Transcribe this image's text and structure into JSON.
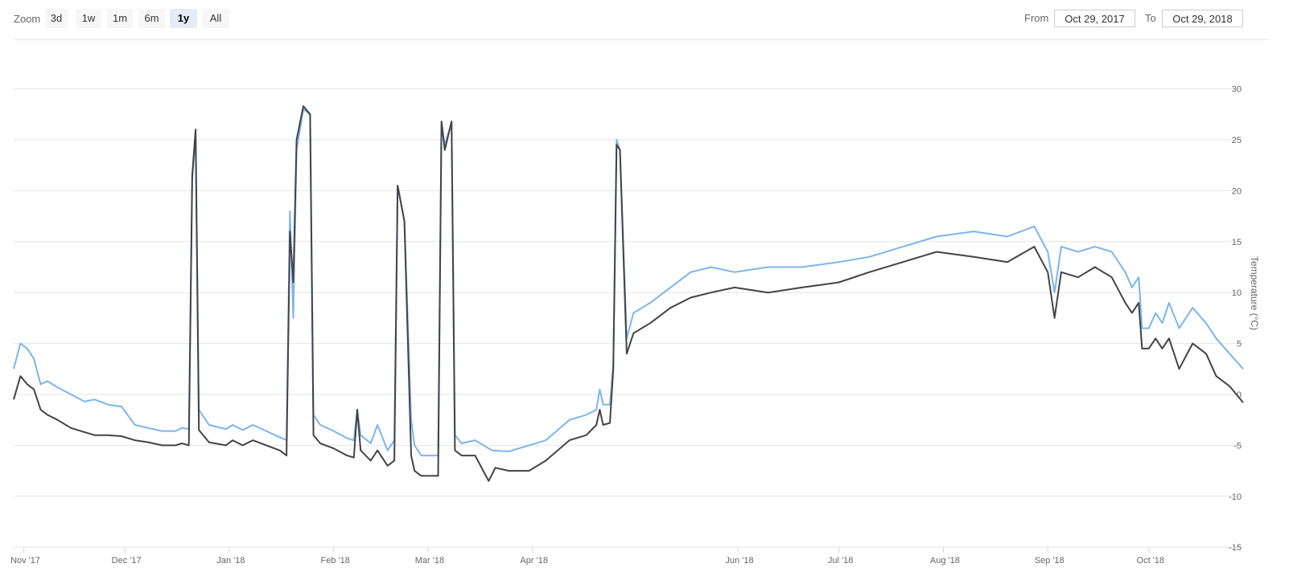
{
  "zoom": {
    "label": "Zoom",
    "buttons": [
      {
        "label": "3d",
        "active": false
      },
      {
        "label": "1w",
        "active": false
      },
      {
        "label": "1m",
        "active": false
      },
      {
        "label": "6m",
        "active": false
      },
      {
        "label": "1y",
        "active": true
      },
      {
        "label": "All",
        "active": false
      }
    ]
  },
  "range": {
    "from_label": "From",
    "from_value": "Oct 29, 2017",
    "to_label": "To",
    "to_value": "Oct 29, 2018"
  },
  "colors": {
    "series_light": "#7cb5ec",
    "series_dark": "#434348",
    "grid": "#e6e6e6",
    "active_button": "#e6ebf5"
  },
  "chart_data": {
    "type": "line",
    "title": "",
    "xlabel": "",
    "ylabel": "Temperature (°C)",
    "ylim": [
      -15,
      35
    ],
    "y_ticks": [
      30,
      25,
      20,
      15,
      10,
      5,
      0,
      -5,
      -10,
      -15
    ],
    "x_range": [
      "2017-10-29",
      "2018-10-29"
    ],
    "x_ticks": [
      {
        "label": "Nov '17",
        "date": "2017-11-01"
      },
      {
        "label": "Dec '17",
        "date": "2017-12-01"
      },
      {
        "label": "Jan '18",
        "date": "2018-01-01"
      },
      {
        "label": "Feb '18",
        "date": "2018-02-01"
      },
      {
        "label": "Mar '18",
        "date": "2018-03-01"
      },
      {
        "label": "Apr '18",
        "date": "2018-04-01"
      },
      {
        "label": "Jun '18",
        "date": "2018-06-01"
      },
      {
        "label": "Jul '18",
        "date": "2018-07-01"
      },
      {
        "label": "Aug '18",
        "date": "2018-08-01"
      },
      {
        "label": "Sep '18",
        "date": "2018-09-01"
      },
      {
        "label": "Oct '18",
        "date": "2018-10-01"
      }
    ],
    "grid": true,
    "series": [
      {
        "color": "#7cb5ec",
        "points": [
          [
            "2017-10-29",
            2.5
          ],
          [
            "2017-10-31",
            5.0
          ],
          [
            "2017-11-02",
            4.5
          ],
          [
            "2017-11-04",
            3.5
          ],
          [
            "2017-11-06",
            1.0
          ],
          [
            "2017-11-08",
            1.3
          ],
          [
            "2017-11-11",
            0.7
          ],
          [
            "2017-11-15",
            0.0
          ],
          [
            "2017-11-19",
            -0.7
          ],
          [
            "2017-11-22",
            -0.5
          ],
          [
            "2017-11-26",
            -1.0
          ],
          [
            "2017-11-30",
            -1.2
          ],
          [
            "2017-12-04",
            -3.0
          ],
          [
            "2017-12-08",
            -3.3
          ],
          [
            "2017-12-12",
            -3.6
          ],
          [
            "2017-12-16",
            -3.6
          ],
          [
            "2017-12-18",
            -3.3
          ],
          [
            "2017-12-20",
            -3.4
          ],
          [
            "2017-12-21",
            21.0
          ],
          [
            "2017-12-22",
            25.5
          ],
          [
            "2017-12-23",
            -1.5
          ],
          [
            "2017-12-26",
            -3.0
          ],
          [
            "2017-12-31",
            -3.4
          ],
          [
            "2018-01-02",
            -3.0
          ],
          [
            "2018-01-05",
            -3.5
          ],
          [
            "2018-01-08",
            -3.0
          ],
          [
            "2018-01-12",
            -3.6
          ],
          [
            "2018-01-16",
            -4.2
          ],
          [
            "2018-01-18",
            -4.5
          ],
          [
            "2018-01-19",
            18.0
          ],
          [
            "2018-01-20",
            7.5
          ],
          [
            "2018-01-21",
            24.0
          ],
          [
            "2018-01-23",
            28.0
          ],
          [
            "2018-01-25",
            27.5
          ],
          [
            "2018-01-26",
            -2.0
          ],
          [
            "2018-01-28",
            -3.0
          ],
          [
            "2018-02-01",
            -3.6
          ],
          [
            "2018-02-05",
            -4.3
          ],
          [
            "2018-02-07",
            -4.5
          ],
          [
            "2018-02-08",
            -1.5
          ],
          [
            "2018-02-09",
            -4.0
          ],
          [
            "2018-02-12",
            -4.8
          ],
          [
            "2018-02-14",
            -3.0
          ],
          [
            "2018-02-17",
            -5.5
          ],
          [
            "2018-02-19",
            -4.5
          ],
          [
            "2018-02-20",
            20.5
          ],
          [
            "2018-02-22",
            17.0
          ],
          [
            "2018-02-24",
            -2.5
          ],
          [
            "2018-02-25",
            -5.0
          ],
          [
            "2018-02-27",
            -6.0
          ],
          [
            "2018-03-04",
            -6.0
          ],
          [
            "2018-03-05",
            26.5
          ],
          [
            "2018-03-06",
            24.5
          ],
          [
            "2018-03-08",
            26.7
          ],
          [
            "2018-03-09",
            -4.0
          ],
          [
            "2018-03-11",
            -4.8
          ],
          [
            "2018-03-15",
            -4.5
          ],
          [
            "2018-03-20",
            -5.5
          ],
          [
            "2018-03-25",
            -5.6
          ],
          [
            "2018-03-31",
            -5.0
          ],
          [
            "2018-04-05",
            -4.5
          ],
          [
            "2018-04-12",
            -2.5
          ],
          [
            "2018-04-17",
            -2.0
          ],
          [
            "2018-04-20",
            -1.5
          ],
          [
            "2018-04-21",
            0.5
          ],
          [
            "2018-04-22",
            -1.0
          ],
          [
            "2018-04-24",
            -1.0
          ],
          [
            "2018-04-25",
            3.0
          ],
          [
            "2018-04-26",
            25.0
          ],
          [
            "2018-04-27",
            24.0
          ],
          [
            "2018-04-29",
            5.5
          ],
          [
            "2018-05-01",
            8.0
          ],
          [
            "2018-05-06",
            9.0
          ],
          [
            "2018-05-12",
            10.5
          ],
          [
            "2018-05-18",
            12.0
          ],
          [
            "2018-05-24",
            12.5
          ],
          [
            "2018-05-31",
            12.0
          ],
          [
            "2018-06-10",
            12.5
          ],
          [
            "2018-06-20",
            12.5
          ],
          [
            "2018-07-01",
            13.0
          ],
          [
            "2018-07-10",
            13.5
          ],
          [
            "2018-07-20",
            14.5
          ],
          [
            "2018-07-30",
            15.5
          ],
          [
            "2018-08-10",
            16.0
          ],
          [
            "2018-08-20",
            15.5
          ],
          [
            "2018-08-28",
            16.5
          ],
          [
            "2018-09-01",
            14.0
          ],
          [
            "2018-09-03",
            10.0
          ],
          [
            "2018-09-05",
            14.5
          ],
          [
            "2018-09-10",
            14.0
          ],
          [
            "2018-09-15",
            14.5
          ],
          [
            "2018-09-20",
            14.0
          ],
          [
            "2018-09-24",
            12.0
          ],
          [
            "2018-09-26",
            10.5
          ],
          [
            "2018-09-28",
            11.5
          ],
          [
            "2018-09-29",
            6.5
          ],
          [
            "2018-10-01",
            6.5
          ],
          [
            "2018-10-03",
            8.0
          ],
          [
            "2018-10-05",
            7.0
          ],
          [
            "2018-10-07",
            9.0
          ],
          [
            "2018-10-10",
            6.5
          ],
          [
            "2018-10-14",
            8.5
          ],
          [
            "2018-10-18",
            7.0
          ],
          [
            "2018-10-21",
            5.5
          ],
          [
            "2018-10-25",
            4.0
          ],
          [
            "2018-10-29",
            2.5
          ]
        ]
      },
      {
        "color": "#434348",
        "points": [
          [
            "2017-10-29",
            -0.5
          ],
          [
            "2017-10-31",
            1.8
          ],
          [
            "2017-11-02",
            1.0
          ],
          [
            "2017-11-04",
            0.5
          ],
          [
            "2017-11-06",
            -1.5
          ],
          [
            "2017-11-08",
            -2.0
          ],
          [
            "2017-11-11",
            -2.5
          ],
          [
            "2017-11-15",
            -3.3
          ],
          [
            "2017-11-19",
            -3.7
          ],
          [
            "2017-11-22",
            -4.0
          ],
          [
            "2017-11-26",
            -4.0
          ],
          [
            "2017-11-30",
            -4.1
          ],
          [
            "2017-12-04",
            -4.5
          ],
          [
            "2017-12-08",
            -4.7
          ],
          [
            "2017-12-12",
            -5.0
          ],
          [
            "2017-12-16",
            -5.0
          ],
          [
            "2017-12-18",
            -4.8
          ],
          [
            "2017-12-20",
            -5.0
          ],
          [
            "2017-12-21",
            21.5
          ],
          [
            "2017-12-22",
            26.0
          ],
          [
            "2017-12-23",
            -3.5
          ],
          [
            "2017-12-26",
            -4.7
          ],
          [
            "2017-12-31",
            -5.0
          ],
          [
            "2018-01-02",
            -4.5
          ],
          [
            "2018-01-05",
            -5.0
          ],
          [
            "2018-01-08",
            -4.5
          ],
          [
            "2018-01-12",
            -5.0
          ],
          [
            "2018-01-16",
            -5.5
          ],
          [
            "2018-01-18",
            -6.0
          ],
          [
            "2018-01-19",
            16.0
          ],
          [
            "2018-01-20",
            11.0
          ],
          [
            "2018-01-21",
            25.0
          ],
          [
            "2018-01-23",
            28.3
          ],
          [
            "2018-01-25",
            27.5
          ],
          [
            "2018-01-26",
            -4.0
          ],
          [
            "2018-01-28",
            -4.8
          ],
          [
            "2018-02-01",
            -5.3
          ],
          [
            "2018-02-05",
            -6.0
          ],
          [
            "2018-02-07",
            -6.2
          ],
          [
            "2018-02-08",
            -1.5
          ],
          [
            "2018-02-09",
            -5.5
          ],
          [
            "2018-02-12",
            -6.5
          ],
          [
            "2018-02-14",
            -5.5
          ],
          [
            "2018-02-17",
            -7.0
          ],
          [
            "2018-02-19",
            -6.5
          ],
          [
            "2018-02-20",
            20.5
          ],
          [
            "2018-02-22",
            17.0
          ],
          [
            "2018-02-24",
            -6.0
          ],
          [
            "2018-02-25",
            -7.5
          ],
          [
            "2018-02-27",
            -8.0
          ],
          [
            "2018-03-04",
            -8.0
          ],
          [
            "2018-03-05",
            26.8
          ],
          [
            "2018-03-06",
            24.0
          ],
          [
            "2018-03-08",
            26.8
          ],
          [
            "2018-03-09",
            -5.5
          ],
          [
            "2018-03-11",
            -6.0
          ],
          [
            "2018-03-15",
            -6.0
          ],
          [
            "2018-03-19",
            -8.5
          ],
          [
            "2018-03-21",
            -7.2
          ],
          [
            "2018-03-25",
            -7.5
          ],
          [
            "2018-03-31",
            -7.5
          ],
          [
            "2018-04-05",
            -6.5
          ],
          [
            "2018-04-12",
            -4.5
          ],
          [
            "2018-04-17",
            -4.0
          ],
          [
            "2018-04-20",
            -3.0
          ],
          [
            "2018-04-21",
            -1.5
          ],
          [
            "2018-04-22",
            -3.0
          ],
          [
            "2018-04-24",
            -2.8
          ],
          [
            "2018-04-25",
            2.5
          ],
          [
            "2018-04-26",
            24.5
          ],
          [
            "2018-04-27",
            24.0
          ],
          [
            "2018-04-29",
            4.0
          ],
          [
            "2018-05-01",
            6.0
          ],
          [
            "2018-05-06",
            7.0
          ],
          [
            "2018-05-12",
            8.5
          ],
          [
            "2018-05-18",
            9.5
          ],
          [
            "2018-05-24",
            10.0
          ],
          [
            "2018-05-31",
            10.5
          ],
          [
            "2018-06-10",
            10.0
          ],
          [
            "2018-06-20",
            10.5
          ],
          [
            "2018-07-01",
            11.0
          ],
          [
            "2018-07-10",
            12.0
          ],
          [
            "2018-07-20",
            13.0
          ],
          [
            "2018-07-30",
            14.0
          ],
          [
            "2018-08-10",
            13.5
          ],
          [
            "2018-08-20",
            13.0
          ],
          [
            "2018-08-28",
            14.5
          ],
          [
            "2018-09-01",
            12.0
          ],
          [
            "2018-09-03",
            7.5
          ],
          [
            "2018-09-05",
            12.0
          ],
          [
            "2018-09-10",
            11.5
          ],
          [
            "2018-09-15",
            12.5
          ],
          [
            "2018-09-20",
            11.5
          ],
          [
            "2018-09-24",
            9.0
          ],
          [
            "2018-09-26",
            8.0
          ],
          [
            "2018-09-28",
            9.0
          ],
          [
            "2018-09-29",
            4.5
          ],
          [
            "2018-10-01",
            4.5
          ],
          [
            "2018-10-03",
            5.5
          ],
          [
            "2018-10-05",
            4.5
          ],
          [
            "2018-10-07",
            5.5
          ],
          [
            "2018-10-10",
            2.5
          ],
          [
            "2018-10-14",
            5.0
          ],
          [
            "2018-10-18",
            4.0
          ],
          [
            "2018-10-21",
            1.8
          ],
          [
            "2018-10-25",
            0.8
          ],
          [
            "2018-10-29",
            -0.8
          ]
        ]
      }
    ]
  }
}
